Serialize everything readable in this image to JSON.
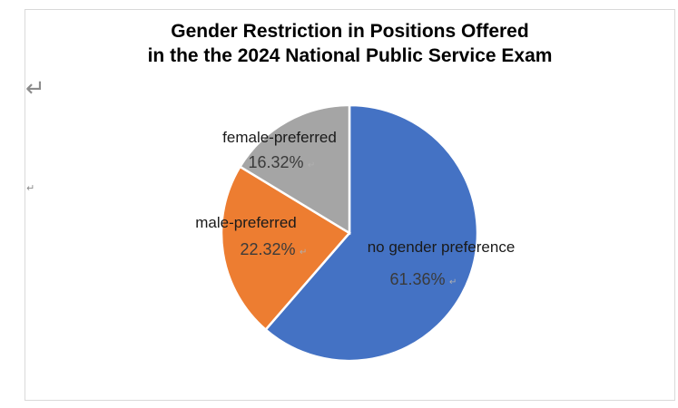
{
  "chart_data": {
    "type": "pie",
    "title_line1": "Gender Restriction in Positions Offered",
    "title_line2": "in the the 2024 National Public Service Exam",
    "slices": [
      {
        "label": "no gender preference",
        "value": 61.36,
        "value_label": "61.36%",
        "color": "#4472c4"
      },
      {
        "label": "male-preferred",
        "value": 22.32,
        "value_label": "22.32%",
        "color": "#ed7d31"
      },
      {
        "label": "female-preferred",
        "value": 16.32,
        "value_label": "16.32%",
        "color": "#a5a5a5"
      }
    ]
  },
  "marks": {
    "big_return": "↵",
    "small_return": "↵"
  }
}
